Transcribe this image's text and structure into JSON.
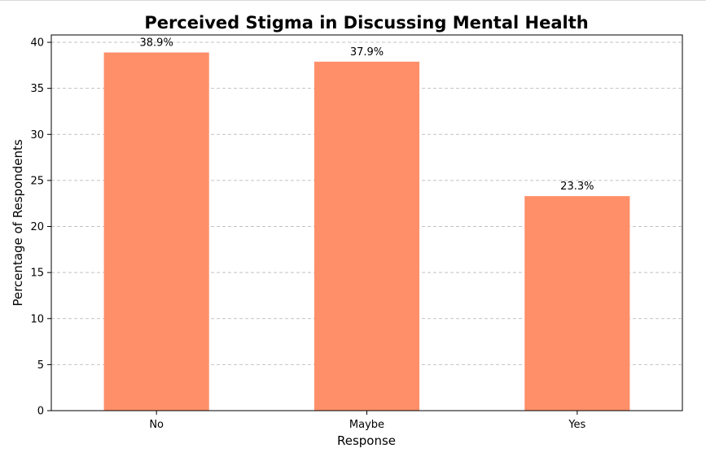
{
  "chart_data": {
    "type": "bar",
    "title": "Perceived Stigma in Discussing Mental Health",
    "xlabel": "Response",
    "ylabel": "Percentage of Respondents",
    "categories": [
      "No",
      "Maybe",
      "Yes"
    ],
    "values": [
      38.9,
      37.9,
      23.3
    ],
    "data_labels": [
      "38.9%",
      "37.9%",
      "23.3%"
    ],
    "ylim": [
      0,
      40.8
    ],
    "y_ticks": [
      0,
      5,
      10,
      15,
      20,
      25,
      30,
      35,
      40
    ],
    "grid": "y dashed",
    "legend": "none",
    "bar_color": "#ff8f69"
  }
}
